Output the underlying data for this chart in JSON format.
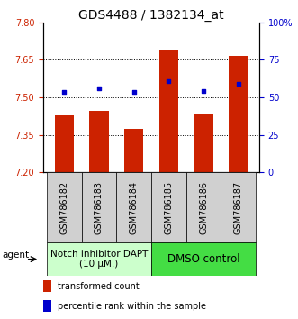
{
  "title": "GDS4488 / 1382134_at",
  "categories": [
    "GSM786182",
    "GSM786183",
    "GSM786184",
    "GSM786185",
    "GSM786186",
    "GSM786187"
  ],
  "bar_values": [
    7.428,
    7.445,
    7.375,
    7.69,
    7.43,
    7.665
  ],
  "blue_values": [
    7.52,
    7.535,
    7.52,
    7.565,
    7.525,
    7.555
  ],
  "bar_color": "#cc2200",
  "blue_color": "#0000cc",
  "ylim_left": [
    7.2,
    7.8
  ],
  "ylim_right": [
    0,
    100
  ],
  "yticks_left": [
    7.2,
    7.35,
    7.5,
    7.65,
    7.8
  ],
  "yticks_right": [
    0,
    25,
    50,
    75,
    100
  ],
  "ytick_labels_right": [
    "0",
    "25",
    "50",
    "75",
    "100%"
  ],
  "grid_values": [
    7.35,
    7.5,
    7.65
  ],
  "group1_label": "Notch inhibitor DAPT\n(10 μM.)",
  "group2_label": "DMSO control",
  "group1_color": "#ccffcc",
  "group2_color": "#44dd44",
  "agent_label": "agent",
  "legend_bar_label": "transformed count",
  "legend_blue_label": "percentile rank within the sample",
  "bar_width": 0.55,
  "plot_bg": "#ffffff",
  "tick_label_color_left": "#cc2200",
  "tick_label_color_right": "#0000cc",
  "title_fontsize": 10,
  "tick_fontsize": 7,
  "group_label_fontsize": 7.5,
  "legend_fontsize": 7,
  "sample_box_color": "#d0d0d0",
  "n_group1": 3,
  "n_group2": 3
}
